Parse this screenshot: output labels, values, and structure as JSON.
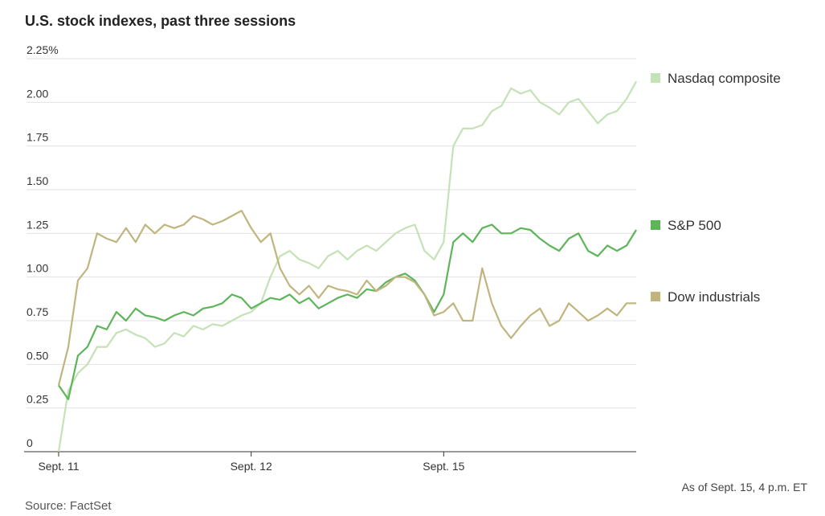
{
  "chart_data": {
    "type": "line",
    "title": "U.S. stock indexes, past three sessions",
    "note": "As of Sept. 15, 4 p.m. ET",
    "source": "Source: FactSet",
    "x": [
      0,
      0.05,
      0.1,
      0.15,
      0.2,
      0.25,
      0.3,
      0.35,
      0.4,
      0.45,
      0.5,
      0.55,
      0.6,
      0.65,
      0.7,
      0.75,
      0.8,
      0.85,
      0.9,
      0.95,
      1,
      1.05,
      1.1,
      1.15,
      1.2,
      1.25,
      1.3,
      1.35,
      1.4,
      1.45,
      1.5,
      1.55,
      1.6,
      1.65,
      1.7,
      1.75,
      1.8,
      1.85,
      1.9,
      1.95,
      2,
      2.05,
      2.1,
      2.15,
      2.2,
      2.25,
      2.3,
      2.35,
      2.4,
      2.45,
      2.5,
      2.55,
      2.6,
      2.65,
      2.7,
      2.75,
      2.8,
      2.85,
      2.9,
      2.95,
      3
    ],
    "xlim": [
      0,
      3
    ],
    "xticks": [
      {
        "value": 0,
        "label": "Sept. 11"
      },
      {
        "value": 1,
        "label": "Sept. 12"
      },
      {
        "value": 2,
        "label": "Sept. 15"
      }
    ],
    "ylim": [
      0,
      2.25
    ],
    "yticks": [
      0,
      0.25,
      {
        "value": 0.5,
        "label": "0.50"
      },
      0.75,
      {
        "value": 1,
        "label": "1.00"
      },
      1.25,
      {
        "value": 1.5,
        "label": "1.50"
      },
      1.75,
      {
        "value": 2,
        "label": "2.00"
      },
      {
        "value": 2.25,
        "label": "2.25%"
      }
    ],
    "grid": true,
    "series": [
      {
        "name": "Nasdaq composite",
        "color": "#c5e2b6",
        "values": [
          0,
          0.35,
          0.45,
          0.5,
          0.6,
          0.6,
          0.68,
          0.7,
          0.67,
          0.65,
          0.6,
          0.62,
          0.68,
          0.66,
          0.72,
          0.7,
          0.73,
          0.72,
          0.75,
          0.78,
          0.8,
          0.85,
          1.0,
          1.12,
          1.15,
          1.1,
          1.08,
          1.05,
          1.12,
          1.15,
          1.1,
          1.15,
          1.18,
          1.15,
          1.2,
          1.25,
          1.28,
          1.3,
          1.15,
          1.1,
          1.2,
          1.75,
          1.85,
          1.85,
          1.87,
          1.95,
          1.98,
          2.08,
          2.05,
          2.07,
          2.0,
          1.97,
          1.93,
          2.0,
          2.02,
          1.95,
          1.88,
          1.93,
          1.95,
          2.02,
          2.12
        ]
      },
      {
        "name": "S&P 500",
        "color": "#5db55a",
        "values": [
          0.38,
          0.3,
          0.55,
          0.6,
          0.72,
          0.7,
          0.8,
          0.75,
          0.82,
          0.78,
          0.77,
          0.75,
          0.78,
          0.8,
          0.78,
          0.82,
          0.83,
          0.85,
          0.9,
          0.88,
          0.82,
          0.85,
          0.88,
          0.87,
          0.9,
          0.85,
          0.88,
          0.82,
          0.85,
          0.88,
          0.9,
          0.88,
          0.93,
          0.92,
          0.97,
          1.0,
          1.02,
          0.98,
          0.9,
          0.8,
          0.9,
          1.2,
          1.25,
          1.2,
          1.28,
          1.3,
          1.25,
          1.25,
          1.28,
          1.27,
          1.22,
          1.18,
          1.15,
          1.22,
          1.25,
          1.15,
          1.12,
          1.18,
          1.15,
          1.18,
          1.27
        ]
      },
      {
        "name": "Dow industrials",
        "color": "#c0b57e",
        "values": [
          0.38,
          0.6,
          0.98,
          1.05,
          1.25,
          1.22,
          1.2,
          1.28,
          1.2,
          1.3,
          1.25,
          1.3,
          1.28,
          1.3,
          1.35,
          1.33,
          1.3,
          1.32,
          1.35,
          1.38,
          1.28,
          1.2,
          1.25,
          1.05,
          0.95,
          0.9,
          0.95,
          0.88,
          0.95,
          0.93,
          0.92,
          0.9,
          0.98,
          0.92,
          0.95,
          1.0,
          1.0,
          0.97,
          0.9,
          0.78,
          0.8,
          0.85,
          0.75,
          0.75,
          1.05,
          0.85,
          0.72,
          0.65,
          0.72,
          0.78,
          0.82,
          0.72,
          0.75,
          0.85,
          0.8,
          0.75,
          0.78,
          0.82,
          0.78,
          0.85,
          0.85
        ]
      }
    ]
  }
}
